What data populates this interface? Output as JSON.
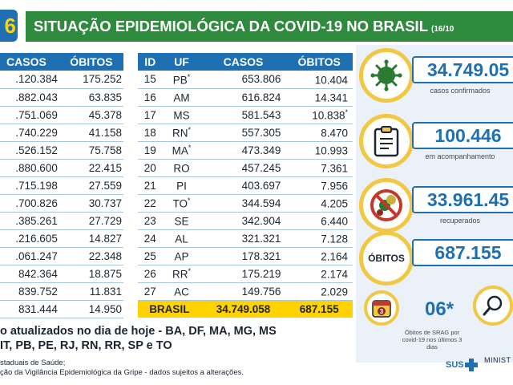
{
  "header": {
    "corner_number": "6",
    "title": "SITUAÇÃO EPIDEMIOLÓGICA DA COVID-19 NO BRASIL",
    "date": "(16/10"
  },
  "left_table": {
    "headers": [
      "CASOS",
      "ÓBITOS"
    ],
    "rows": [
      [
        ".120.384",
        "175.252"
      ],
      [
        ".882.043",
        "63.835"
      ],
      [
        ".751.069",
        "45.378"
      ],
      [
        ".740.229",
        "41.158"
      ],
      [
        ".526.152",
        "75.758"
      ],
      [
        ".880.600",
        "22.415"
      ],
      [
        ".715.198",
        "27.559"
      ],
      [
        ".700.826",
        "30.737"
      ],
      [
        ".385.261",
        "27.729"
      ],
      [
        ".216.605",
        "14.827"
      ],
      [
        ".061.247",
        "22.348"
      ],
      [
        "842.364",
        "18.875"
      ],
      [
        "839.752",
        "11.831"
      ],
      [
        "831.444",
        "14.950"
      ]
    ]
  },
  "right_table": {
    "headers": [
      "ID",
      "UF",
      "CASOS",
      "ÓBITOS"
    ],
    "rows": [
      {
        "id": "15",
        "uf": "PB",
        "uf_mark": "*",
        "casos": "653.806",
        "obitos": "10.404",
        "obitos_mark": ""
      },
      {
        "id": "16",
        "uf": "AM",
        "uf_mark": "",
        "casos": "616.824",
        "obitos": "14.341",
        "obitos_mark": ""
      },
      {
        "id": "17",
        "uf": "MS",
        "uf_mark": "",
        "casos": "581.543",
        "obitos": "10.838",
        "obitos_mark": "*"
      },
      {
        "id": "18",
        "uf": "RN",
        "uf_mark": "*",
        "casos": "557.305",
        "obitos": "8.470",
        "obitos_mark": ""
      },
      {
        "id": "19",
        "uf": "MA",
        "uf_mark": "*",
        "casos": "473.349",
        "obitos": "10.993",
        "obitos_mark": ""
      },
      {
        "id": "20",
        "uf": "RO",
        "uf_mark": "",
        "casos": "457.245",
        "obitos": "7.361",
        "obitos_mark": ""
      },
      {
        "id": "21",
        "uf": "PI",
        "uf_mark": "",
        "casos": "403.697",
        "obitos": "7.956",
        "obitos_mark": ""
      },
      {
        "id": "22",
        "uf": "TO",
        "uf_mark": "*",
        "casos": "344.594",
        "obitos": "4.205",
        "obitos_mark": ""
      },
      {
        "id": "23",
        "uf": "SE",
        "uf_mark": "",
        "casos": "342.904",
        "obitos": "6.440",
        "obitos_mark": ""
      },
      {
        "id": "24",
        "uf": "AL",
        "uf_mark": "",
        "casos": "321.321",
        "obitos": "7.128",
        "obitos_mark": ""
      },
      {
        "id": "25",
        "uf": "AP",
        "uf_mark": "",
        "casos": "178.321",
        "obitos": "2.164",
        "obitos_mark": ""
      },
      {
        "id": "26",
        "uf": "RR",
        "uf_mark": "*",
        "casos": "175.219",
        "obitos": "2.174",
        "obitos_mark": ""
      },
      {
        "id": "27",
        "uf": "AC",
        "uf_mark": "",
        "casos": "149.756",
        "obitos": "2.029",
        "obitos_mark": ""
      }
    ],
    "total": {
      "label": "BRASIL",
      "casos": "34.749.058",
      "obitos": "687.155"
    }
  },
  "stats": {
    "confirmed": {
      "value": "34.749.05",
      "caption": "casos confirmados",
      "icon": "virus-icon"
    },
    "monitoring": {
      "value": "100.446",
      "caption": "em acompanhamento",
      "icon": "clipboard-icon"
    },
    "recovered": {
      "value": "33.961.45",
      "caption": "recuperados",
      "icon": "crossed-virus-icon"
    },
    "deaths": {
      "label": "ÓBITOS",
      "value": "687.155"
    },
    "srag": {
      "value": "06*",
      "caption": "Óbitos de SRAG por covid-19 nos últimos 3 dias",
      "calendar_day": "3"
    }
  },
  "footer": {
    "note_line1": "o atualizados no dia de hoje - BA, DF, MA, MG, MS",
    "note_line2": "IT, PB, PE, RJ, RN, RR, SP e TO",
    "source_line1": "staduais de Saúde;",
    "source_line2": "ção da Vigilância Epidemiológica da Gripe - dados sujeitos a alterações.",
    "sus_label": "SUS",
    "ministry_label": "MINIST"
  },
  "colors": {
    "blue": "#1f6fb3",
    "green": "#2e8a3c",
    "yellow": "#ffd200",
    "circle_border": "#f2c744"
  }
}
